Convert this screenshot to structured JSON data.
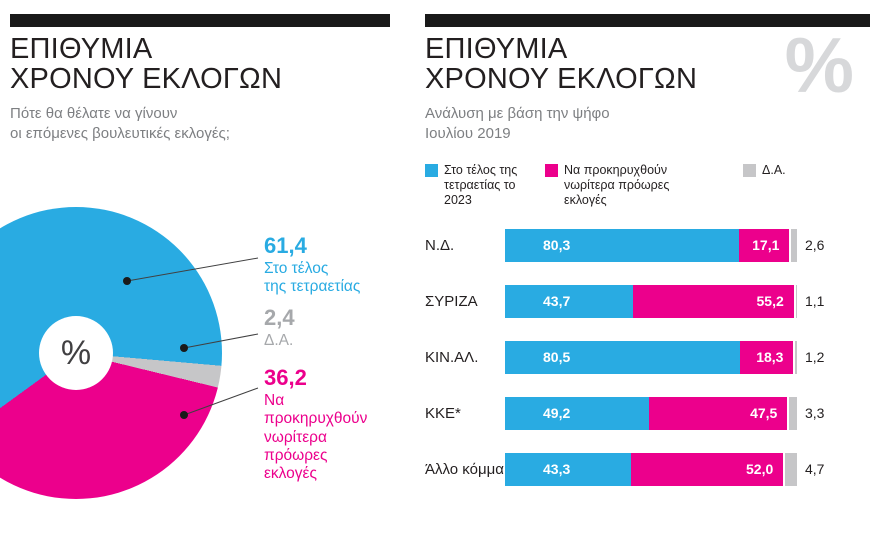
{
  "left_panel": {
    "title": "ΕΠΙΘΥΜΙΑ\nΧΡΟΝΟΥ ΕΚΛΟΓΩΝ",
    "subtitle": "Πότε θα θέλατε να γίνουν\nοι επόμενες βουλευτικές εκλογές;",
    "center_symbol": "%"
  },
  "right_panel": {
    "title": "ΕΠΙΘΥΜΙΑ\nΧΡΟΝΟΥ ΕΚΛΟΓΩΝ",
    "subtitle": "Ανάλυση με βάση την ψήφο\nΙουλίου 2019",
    "watermark": "%"
  },
  "colors": {
    "cyan": "#29abe2",
    "magenta": "#ec008c",
    "gray": "#c6c6c8",
    "black_bar": "#191919",
    "title_text": "#231f20",
    "subtitle_text": "#7d7f82",
    "gray_label_text": "#a6a8ab"
  },
  "chart_data": [
    {
      "type": "pie",
      "title": "ΕΠΙΘΥΜΙΑ ΧΡΟΝΟΥ ΕΚΛΟΓΩΝ",
      "question": "Πότε θα θέλατε να γίνουν οι επόμενες βουλευτικές εκλογές;",
      "slices": [
        {
          "label": "Στο τέλος της τετραετίας",
          "label_display": "Στο τέλος\nτης τετραετίας",
          "value": 61.4,
          "value_text": "61,4",
          "color": "#29abe2",
          "text_color": "#29abe2"
        },
        {
          "label": "Δ.Α.",
          "label_display": "Δ.Α.",
          "value": 2.4,
          "value_text": "2,4",
          "color": "#c6c6c8",
          "text_color": "#a6a8ab"
        },
        {
          "label": "Να προκηρυχθούν νωρίτερα πρόωρες εκλογές",
          "label_display": "Να\nπροκηρυχθούν\nνωρίτερα\nπρόωρες\nεκλογές",
          "value": 36.2,
          "value_text": "36,2",
          "color": "#ec008c",
          "text_color": "#ec008c"
        }
      ]
    },
    {
      "type": "bar",
      "orientation": "horizontal-stacked",
      "title": "ΕΠΙΘΥΜΙΑ ΧΡΟΝΟΥ ΕΚΛΟΓΩΝ — Ανάλυση με βάση την ψήφο Ιουλίου 2019",
      "xlim": [
        0,
        100
      ],
      "legend": [
        {
          "label": "Στο τέλος της\nτετραετίας το 2023",
          "color": "#29abe2"
        },
        {
          "label": "Να προκηρυχθούν\nνωρίτερα πρόωρες\nεκλογές",
          "color": "#ec008c"
        },
        {
          "label": "Δ.Α.",
          "color": "#c6c6c8"
        }
      ],
      "categories": [
        "Ν.Δ.",
        "ΣΥΡΙΖΑ",
        "ΚΙΝ.ΑΛ.",
        "ΚΚΕ*",
        "Άλλο κόμμα"
      ],
      "series": [
        {
          "name": "Στο τέλος της τετραετίας το 2023",
          "color": "#29abe2",
          "values": [
            80.3,
            43.7,
            80.5,
            49.2,
            43.3
          ],
          "value_texts": [
            "80,3",
            "43,7",
            "80,5",
            "49,2",
            "43,3"
          ]
        },
        {
          "name": "Να προκηρυχθούν νωρίτερα πρόωρες εκλογές",
          "color": "#ec008c",
          "values": [
            17.1,
            55.2,
            18.3,
            47.5,
            52.0
          ],
          "value_texts": [
            "17,1",
            "55,2",
            "18,3",
            "47,5",
            "52,0"
          ]
        },
        {
          "name": "Δ.Α.",
          "color": "#c6c6c8",
          "values": [
            2.6,
            1.1,
            1.2,
            3.3,
            4.7
          ],
          "value_texts": [
            "2,6",
            "1,1",
            "1,2",
            "3,3",
            "4,7"
          ]
        }
      ]
    }
  ]
}
